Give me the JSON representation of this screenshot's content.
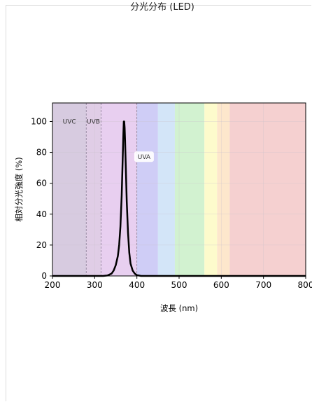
{
  "header": {
    "title": "分光分布 (LED)"
  },
  "chart_data": {
    "type": "line",
    "title": "",
    "xlabel": "波長 (nm)",
    "ylabel": "相対分光強度 (%)",
    "xlim": [
      200,
      800
    ],
    "ylim": [
      0,
      112
    ],
    "xticks": [
      200,
      300,
      400,
      500,
      600,
      700,
      800
    ],
    "yticks": [
      0,
      20,
      40,
      60,
      80,
      100
    ],
    "grid": true,
    "bands": [
      {
        "from": 200,
        "to": 280,
        "color": "#d7cbe0"
      },
      {
        "from": 280,
        "to": 315,
        "color": "#e0cde6"
      },
      {
        "from": 315,
        "to": 400,
        "color": "#e8cff0"
      },
      {
        "from": 400,
        "to": 450,
        "color": "#cfcdf6"
      },
      {
        "from": 450,
        "to": 490,
        "color": "#d3e5f8"
      },
      {
        "from": 490,
        "to": 560,
        "color": "#d2f2d0"
      },
      {
        "from": 560,
        "to": 590,
        "color": "#fdfbcc"
      },
      {
        "from": 590,
        "to": 620,
        "color": "#fde7cc"
      },
      {
        "from": 620,
        "to": 800,
        "color": "#f5d0d0"
      }
    ],
    "boundaries": [
      280,
      315,
      400
    ],
    "region_labels": [
      {
        "text": "UVC",
        "x": 240,
        "y": 100
      },
      {
        "text": "UVB",
        "x": 297,
        "y": 100
      },
      {
        "text": "UVA",
        "x": 417,
        "y": 77
      }
    ],
    "series": [
      {
        "color": "#000000",
        "x": [
          200,
          320,
          330,
          340,
          345,
          350,
          355,
          358,
          361,
          364,
          366,
          368,
          369,
          370,
          371,
          372,
          374,
          376,
          379,
          382,
          385,
          390,
          395,
          400,
          410,
          420,
          800
        ],
        "values": [
          0,
          0,
          0.3,
          1.5,
          3.5,
          7,
          13,
          20,
          32,
          52,
          72,
          92,
          100,
          100,
          96,
          88,
          68,
          48,
          28,
          15,
          8,
          3.5,
          1.5,
          0.5,
          0,
          0,
          0
        ]
      }
    ]
  }
}
